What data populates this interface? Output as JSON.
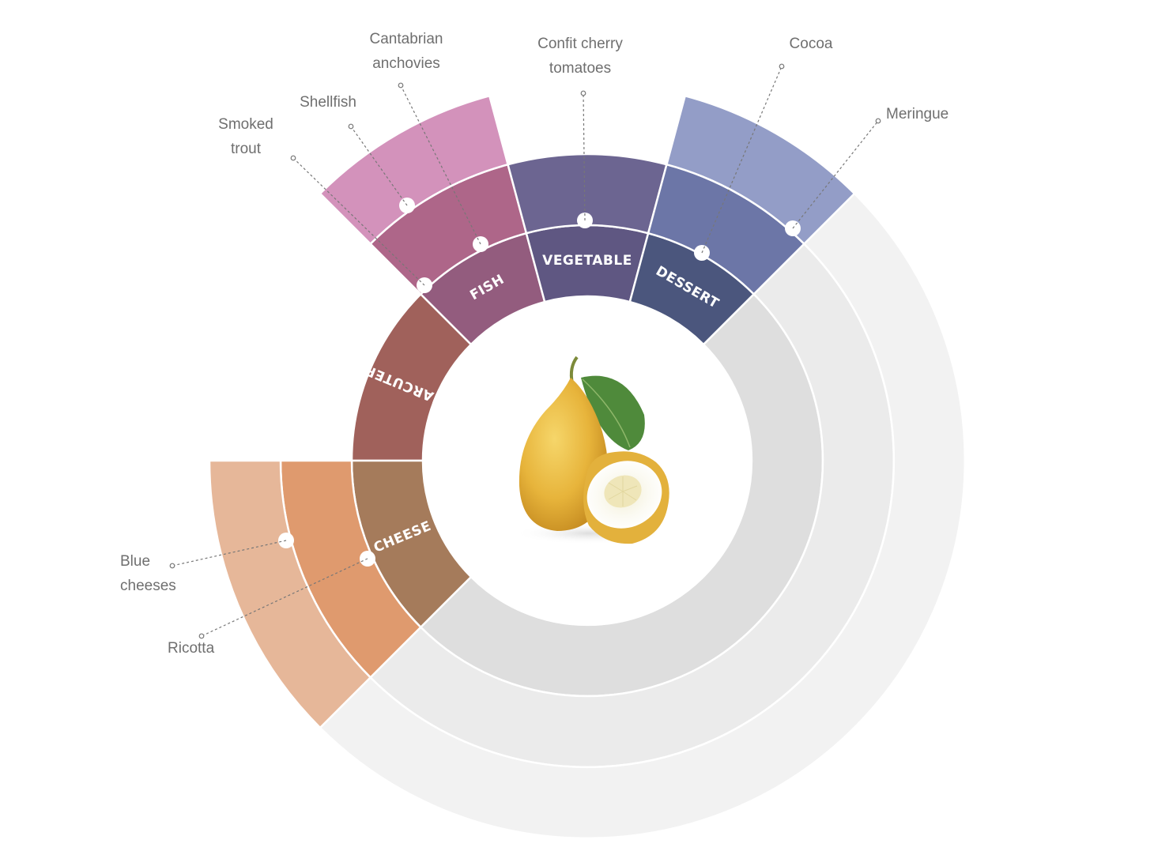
{
  "title": "",
  "center_image": "citron-fruit",
  "categories": [
    {
      "id": "charcuterie",
      "label": "CHARCUTERIE",
      "color": "#a0615b",
      "depth": 1
    },
    {
      "id": "fish",
      "label": "FISH",
      "color": "#935c7e",
      "depth": 3
    },
    {
      "id": "vegetable",
      "label": "VEGETABLE",
      "color": "#5f5782",
      "depth": 2
    },
    {
      "id": "dessert",
      "label": "DESSERT",
      "color": "#4b567d",
      "depth": 3
    },
    {
      "id": "cheese",
      "label": "CHEESE",
      "color": "#a57b5b",
      "depth": 3
    }
  ],
  "ring_colors": {
    "fish": [
      "#935c7e",
      "#ae6689",
      "#d392bb"
    ],
    "vegetable": [
      "#5f5782",
      "#6c6591"
    ],
    "dessert": [
      "#4b567d",
      "#6c76a7",
      "#939dc7"
    ],
    "cheese": [
      "#a57b5b",
      "#df9a6e",
      "#e6b799"
    ],
    "charcuterie": [
      "#a0615b"
    ],
    "inactive": [
      "#dedede",
      "#ebebeb",
      "#f2f2f2"
    ]
  },
  "pairings": [
    {
      "label_lines": [
        "Smoked",
        "trout"
      ],
      "category": "fish"
    },
    {
      "label_lines": [
        "Shellfish"
      ],
      "category": "fish"
    },
    {
      "label_lines": [
        "Cantabrian",
        "anchovies"
      ],
      "category": "fish"
    },
    {
      "label_lines": [
        "Confit cherry",
        "tomatoes"
      ],
      "category": "vegetable"
    },
    {
      "label_lines": [
        "Cocoa"
      ],
      "category": "dessert"
    },
    {
      "label_lines": [
        "Meringue"
      ],
      "category": "dessert"
    },
    {
      "label_lines": [
        "Blue",
        "cheeses"
      ],
      "category": "cheese"
    },
    {
      "label_lines": [
        "Ricotta"
      ],
      "category": "cheese"
    }
  ]
}
